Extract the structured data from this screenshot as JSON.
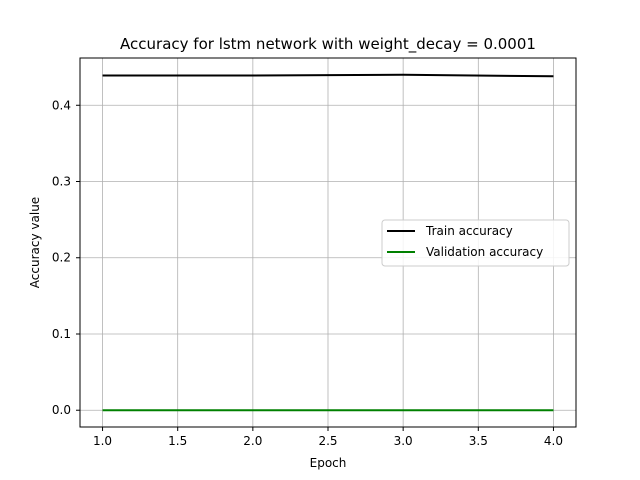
{
  "chart_data": {
    "type": "line",
    "title": "Accuracy for lstm network with weight_decay = 0.0001",
    "xlabel": "Epoch",
    "ylabel": "Accuracy value",
    "xlim": [
      0.85,
      4.15
    ],
    "ylim": [
      -0.022,
      0.462
    ],
    "xticks": [
      1.0,
      1.5,
      2.0,
      2.5,
      3.0,
      3.5,
      4.0
    ],
    "xtick_labels": [
      "1.0",
      "1.5",
      "2.0",
      "2.5",
      "3.0",
      "3.5",
      "4.0"
    ],
    "yticks": [
      0.0,
      0.1,
      0.2,
      0.3,
      0.4
    ],
    "ytick_labels": [
      "0.0",
      "0.1",
      "0.2",
      "0.3",
      "0.4"
    ],
    "grid": true,
    "legend_position": "center-right",
    "x": [
      1,
      2,
      3,
      4
    ],
    "series": [
      {
        "name": "Train accuracy",
        "color": "#000000",
        "values": [
          0.439,
          0.439,
          0.44,
          0.438
        ]
      },
      {
        "name": "Validation accuracy",
        "color": "#008000",
        "values": [
          0.0,
          0.0,
          0.0,
          0.0
        ]
      }
    ]
  }
}
